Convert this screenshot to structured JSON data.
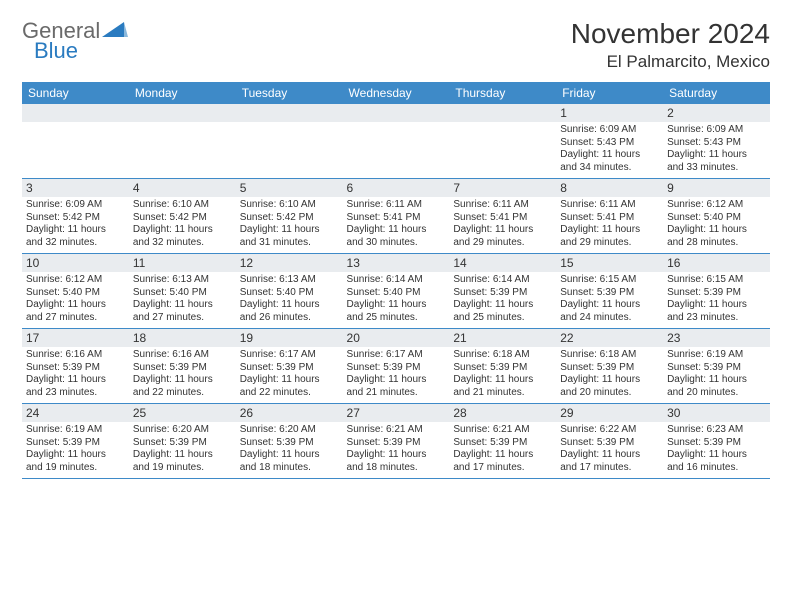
{
  "logo": {
    "general": "General",
    "blue": "Blue"
  },
  "title": "November 2024",
  "location": "El Palmarcito, Mexico",
  "header_color": "#3e8ac8",
  "day_bg": "#e9ecef",
  "week_days": [
    "Sunday",
    "Monday",
    "Tuesday",
    "Wednesday",
    "Thursday",
    "Friday",
    "Saturday"
  ],
  "first_row_blank_count": 5,
  "days": [
    {
      "num": "1",
      "sunrise": "6:09 AM",
      "sunset": "5:43 PM",
      "daylight_h": "11",
      "daylight_m": "34"
    },
    {
      "num": "2",
      "sunrise": "6:09 AM",
      "sunset": "5:43 PM",
      "daylight_h": "11",
      "daylight_m": "33"
    },
    {
      "num": "3",
      "sunrise": "6:09 AM",
      "sunset": "5:42 PM",
      "daylight_h": "11",
      "daylight_m": "32"
    },
    {
      "num": "4",
      "sunrise": "6:10 AM",
      "sunset": "5:42 PM",
      "daylight_h": "11",
      "daylight_m": "32"
    },
    {
      "num": "5",
      "sunrise": "6:10 AM",
      "sunset": "5:42 PM",
      "daylight_h": "11",
      "daylight_m": "31"
    },
    {
      "num": "6",
      "sunrise": "6:11 AM",
      "sunset": "5:41 PM",
      "daylight_h": "11",
      "daylight_m": "30"
    },
    {
      "num": "7",
      "sunrise": "6:11 AM",
      "sunset": "5:41 PM",
      "daylight_h": "11",
      "daylight_m": "29"
    },
    {
      "num": "8",
      "sunrise": "6:11 AM",
      "sunset": "5:41 PM",
      "daylight_h": "11",
      "daylight_m": "29"
    },
    {
      "num": "9",
      "sunrise": "6:12 AM",
      "sunset": "5:40 PM",
      "daylight_h": "11",
      "daylight_m": "28"
    },
    {
      "num": "10",
      "sunrise": "6:12 AM",
      "sunset": "5:40 PM",
      "daylight_h": "11",
      "daylight_m": "27"
    },
    {
      "num": "11",
      "sunrise": "6:13 AM",
      "sunset": "5:40 PM",
      "daylight_h": "11",
      "daylight_m": "27"
    },
    {
      "num": "12",
      "sunrise": "6:13 AM",
      "sunset": "5:40 PM",
      "daylight_h": "11",
      "daylight_m": "26"
    },
    {
      "num": "13",
      "sunrise": "6:14 AM",
      "sunset": "5:40 PM",
      "daylight_h": "11",
      "daylight_m": "25"
    },
    {
      "num": "14",
      "sunrise": "6:14 AM",
      "sunset": "5:39 PM",
      "daylight_h": "11",
      "daylight_m": "25"
    },
    {
      "num": "15",
      "sunrise": "6:15 AM",
      "sunset": "5:39 PM",
      "daylight_h": "11",
      "daylight_m": "24"
    },
    {
      "num": "16",
      "sunrise": "6:15 AM",
      "sunset": "5:39 PM",
      "daylight_h": "11",
      "daylight_m": "23"
    },
    {
      "num": "17",
      "sunrise": "6:16 AM",
      "sunset": "5:39 PM",
      "daylight_h": "11",
      "daylight_m": "23"
    },
    {
      "num": "18",
      "sunrise": "6:16 AM",
      "sunset": "5:39 PM",
      "daylight_h": "11",
      "daylight_m": "22"
    },
    {
      "num": "19",
      "sunrise": "6:17 AM",
      "sunset": "5:39 PM",
      "daylight_h": "11",
      "daylight_m": "22"
    },
    {
      "num": "20",
      "sunrise": "6:17 AM",
      "sunset": "5:39 PM",
      "daylight_h": "11",
      "daylight_m": "21"
    },
    {
      "num": "21",
      "sunrise": "6:18 AM",
      "sunset": "5:39 PM",
      "daylight_h": "11",
      "daylight_m": "21"
    },
    {
      "num": "22",
      "sunrise": "6:18 AM",
      "sunset": "5:39 PM",
      "daylight_h": "11",
      "daylight_m": "20"
    },
    {
      "num": "23",
      "sunrise": "6:19 AM",
      "sunset": "5:39 PM",
      "daylight_h": "11",
      "daylight_m": "20"
    },
    {
      "num": "24",
      "sunrise": "6:19 AM",
      "sunset": "5:39 PM",
      "daylight_h": "11",
      "daylight_m": "19"
    },
    {
      "num": "25",
      "sunrise": "6:20 AM",
      "sunset": "5:39 PM",
      "daylight_h": "11",
      "daylight_m": "19"
    },
    {
      "num": "26",
      "sunrise": "6:20 AM",
      "sunset": "5:39 PM",
      "daylight_h": "11",
      "daylight_m": "18"
    },
    {
      "num": "27",
      "sunrise": "6:21 AM",
      "sunset": "5:39 PM",
      "daylight_h": "11",
      "daylight_m": "18"
    },
    {
      "num": "28",
      "sunrise": "6:21 AM",
      "sunset": "5:39 PM",
      "daylight_h": "11",
      "daylight_m": "17"
    },
    {
      "num": "29",
      "sunrise": "6:22 AM",
      "sunset": "5:39 PM",
      "daylight_h": "11",
      "daylight_m": "17"
    },
    {
      "num": "30",
      "sunrise": "6:23 AM",
      "sunset": "5:39 PM",
      "daylight_h": "11",
      "daylight_m": "16"
    }
  ]
}
